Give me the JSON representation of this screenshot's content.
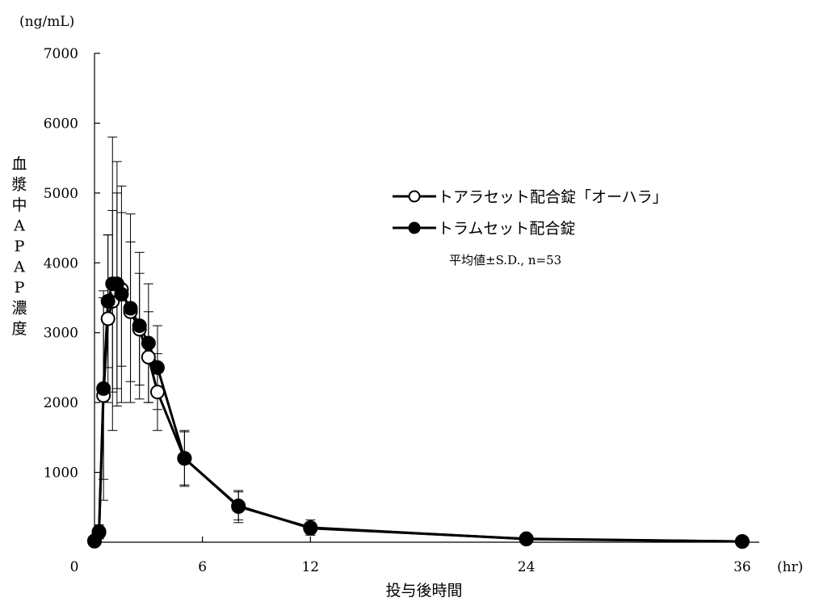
{
  "chart_data": {
    "type": "line",
    "title": "",
    "xlabel": "投与後時間",
    "x_unit": "(hr)",
    "ylabel": "血漿中APAP濃度",
    "y_unit": "(ng/mL)",
    "xlim": [
      0,
      40
    ],
    "ylim": [
      0,
      7000
    ],
    "x_ticks": [
      0,
      6,
      12,
      24,
      36
    ],
    "y_ticks": [
      1000,
      2000,
      3000,
      4000,
      5000,
      6000,
      7000
    ],
    "grid": false,
    "legend_position": "right",
    "note": "平均値±S.D., n=53",
    "series": [
      {
        "name": "トアラセット配合錠「オーハラ」",
        "marker": "open-circle",
        "color": "#000000",
        "x": [
          0,
          0.25,
          0.5,
          0.75,
          1.0,
          1.25,
          1.5,
          2.0,
          2.5,
          3.0,
          3.5,
          5,
          8,
          12,
          24,
          36
        ],
        "y": [
          20,
          150,
          2100,
          3200,
          3450,
          3600,
          3620,
          3300,
          3050,
          2650,
          2150,
          1200,
          520,
          200,
          50,
          10
        ],
        "err": [
          0,
          100,
          1500,
          1200,
          1300,
          1400,
          1100,
          1000,
          800,
          650,
          550,
          380,
          200,
          80,
          30,
          5
        ]
      },
      {
        "name": "トラムセット配合錠",
        "marker": "filled-circle",
        "color": "#000000",
        "x": [
          0,
          0.25,
          0.5,
          0.75,
          1.0,
          1.25,
          1.5,
          2.0,
          2.5,
          3.0,
          3.5,
          5,
          8,
          12,
          24,
          36
        ],
        "y": [
          15,
          140,
          2200,
          3450,
          3700,
          3700,
          3550,
          3350,
          3100,
          2850,
          2500,
          1200,
          510,
          210,
          45,
          10
        ],
        "err": [
          0,
          90,
          1300,
          950,
          2100,
          1750,
          1550,
          1350,
          1050,
          850,
          600,
          400,
          230,
          110,
          30,
          5
        ]
      }
    ]
  }
}
